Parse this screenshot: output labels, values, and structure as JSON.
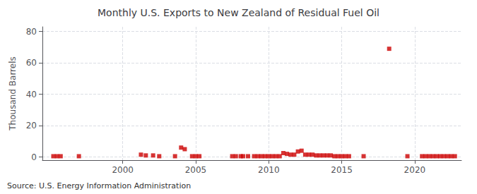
{
  "chart_data": {
    "type": "scatter",
    "title": "Monthly U.S. Exports to New Zealand of Residual Fuel Oil",
    "ylabel": "Thousand Barrels",
    "source": "Source: U.S. Energy Information Administration",
    "x": [
      1995.25,
      1995.5,
      1995.75,
      1997.0,
      2001.25,
      2001.583,
      2002.083,
      2002.5,
      2003.583,
      2004.0,
      2004.25,
      2004.75,
      2005.0,
      2005.25,
      2007.5,
      2007.75,
      2008.083,
      2008.25,
      2008.583,
      2009.0,
      2009.25,
      2009.5,
      2009.75,
      2010.0,
      2010.25,
      2010.5,
      2010.75,
      2011.0,
      2011.25,
      2011.5,
      2011.75,
      2012.0,
      2012.25,
      2012.5,
      2012.75,
      2013.0,
      2013.25,
      2013.5,
      2013.75,
      2014.0,
      2014.25,
      2014.5,
      2014.75,
      2015.0,
      2015.25,
      2015.5,
      2016.5,
      2018.25,
      2019.5,
      2020.5,
      2020.75,
      2021.0,
      2021.25,
      2021.5,
      2021.75,
      2022.0,
      2022.25,
      2022.5,
      2022.75
    ],
    "values": [
      0.5,
      0.5,
      0.5,
      0.5,
      1.5,
      1.0,
      1.0,
      0.5,
      0.5,
      6.0,
      5.0,
      0.5,
      0.5,
      0.5,
      0.5,
      0.5,
      0.5,
      0.5,
      0.5,
      0.5,
      0.5,
      0.5,
      0.5,
      0.5,
      0.5,
      0.5,
      0.5,
      2.5,
      2.0,
      1.5,
      1.5,
      3.5,
      4.0,
      1.5,
      1.5,
      1.5,
      1.0,
      1.0,
      1.0,
      1.0,
      1.0,
      0.5,
      0.5,
      0.5,
      0.5,
      0.5,
      0.5,
      69,
      0.5,
      0.5,
      0.5,
      0.5,
      0.5,
      0.5,
      0.5,
      0.5,
      0.5,
      0.5,
      0.5
    ],
    "color": "#cc0000",
    "marker": "square",
    "xlim": [
      1994.5,
      2023.2
    ],
    "xticks": [
      2000,
      2005,
      2010,
      2015,
      2020
    ],
    "ylim": [
      -2,
      83
    ],
    "yticks": [
      0,
      20,
      40,
      60,
      80
    ],
    "grid": true
  }
}
